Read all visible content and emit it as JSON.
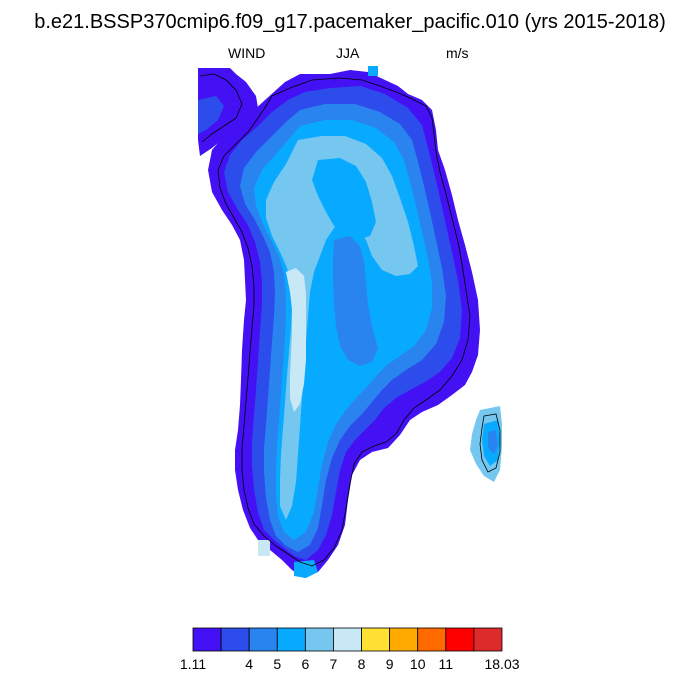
{
  "title": "b.e21.BSSP370cmip6.f09_g17.pacemaker_pacific.010 (yrs 2015-2018)",
  "subtitle": {
    "variable": "WIND",
    "season": "JJA",
    "units": "m/s"
  },
  "colorbar": {
    "colors": [
      "#4411f5",
      "#2d4cec",
      "#2a84f0",
      "#07aaff",
      "#75c7f0",
      "#c8e8f6",
      "#ffe033",
      "#ffaa00",
      "#ff6b00",
      "#ff0000",
      "#dd2a2a"
    ],
    "labels": [
      "1.11",
      "4",
      "5",
      "6",
      "7",
      "8",
      "9",
      "10",
      "11",
      "18.03"
    ]
  }
}
